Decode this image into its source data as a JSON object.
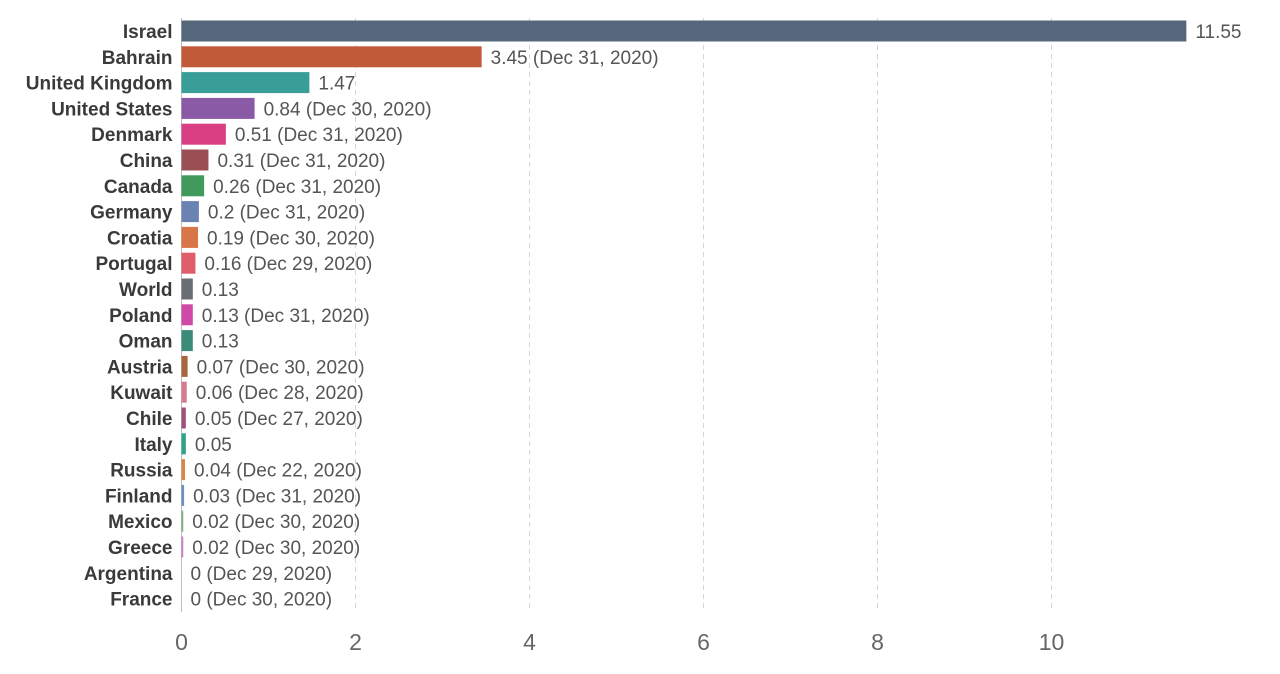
{
  "chart_data": {
    "type": "bar",
    "orientation": "horizontal",
    "title": "",
    "xlabel": "",
    "ylabel": "",
    "xlim": [
      0,
      12.05
    ],
    "grid": "vertical-dashed",
    "x_ticks": [
      0,
      2,
      4,
      6,
      8,
      10
    ],
    "x_tick_labels": [
      "0",
      "2",
      "4",
      "6",
      "8",
      "10"
    ],
    "bars": [
      {
        "category": "Israel",
        "value": 11.55,
        "label": "11.55",
        "color": "#55677a"
      },
      {
        "category": "Bahrain",
        "value": 3.45,
        "label": "3.45 (Dec 31, 2020)",
        "color": "#c15a39"
      },
      {
        "category": "United Kingdom",
        "value": 1.47,
        "label": "1.47",
        "color": "#3a9e98"
      },
      {
        "category": "United States",
        "value": 0.84,
        "label": "0.84 (Dec 30, 2020)",
        "color": "#8a5aa6"
      },
      {
        "category": "Denmark",
        "value": 0.51,
        "label": "0.51 (Dec 31, 2020)",
        "color": "#da3f83"
      },
      {
        "category": "China",
        "value": 0.31,
        "label": "0.31 (Dec 31, 2020)",
        "color": "#9a4f55"
      },
      {
        "category": "Canada",
        "value": 0.26,
        "label": "0.26 (Dec 31, 2020)",
        "color": "#3f9a5c"
      },
      {
        "category": "Germany",
        "value": 0.2,
        "label": "0.2 (Dec 31, 2020)",
        "color": "#6a83b3"
      },
      {
        "category": "Croatia",
        "value": 0.19,
        "label": "0.19 (Dec 30, 2020)",
        "color": "#d8764a"
      },
      {
        "category": "Portugal",
        "value": 0.16,
        "label": "0.16 (Dec 29, 2020)",
        "color": "#e05c6a"
      },
      {
        "category": "World",
        "value": 0.13,
        "label": "0.13",
        "color": "#6a6d73"
      },
      {
        "category": "Poland",
        "value": 0.13,
        "label": "0.13 (Dec 31, 2020)",
        "color": "#cf4aa8"
      },
      {
        "category": "Oman",
        "value": 0.13,
        "label": "0.13",
        "color": "#3c8a7a"
      },
      {
        "category": "Austria",
        "value": 0.07,
        "label": "0.07 (Dec 30, 2020)",
        "color": "#a9663c"
      },
      {
        "category": "Kuwait",
        "value": 0.06,
        "label": "0.06 (Dec 28, 2020)",
        "color": "#d67c8e"
      },
      {
        "category": "Chile",
        "value": 0.05,
        "label": "0.05 (Dec 27, 2020)",
        "color": "#a0527c"
      },
      {
        "category": "Italy",
        "value": 0.05,
        "label": "0.05",
        "color": "#2fa38a"
      },
      {
        "category": "Russia",
        "value": 0.04,
        "label": "0.04 (Dec 22, 2020)",
        "color": "#d88a42"
      },
      {
        "category": "Finland",
        "value": 0.03,
        "label": "0.03 (Dec 31, 2020)",
        "color": "#6c8fbf"
      },
      {
        "category": "Mexico",
        "value": 0.02,
        "label": "0.02 (Dec 30, 2020)",
        "color": "#7fae7a"
      },
      {
        "category": "Greece",
        "value": 0.02,
        "label": "0.02 (Dec 30, 2020)",
        "color": "#c77fc2"
      },
      {
        "category": "Argentina",
        "value": 0,
        "label": "0 (Dec 29, 2020)",
        "color": "#999999"
      },
      {
        "category": "France",
        "value": 0,
        "label": "0 (Dec 30, 2020)",
        "color": "#999999"
      }
    ]
  }
}
